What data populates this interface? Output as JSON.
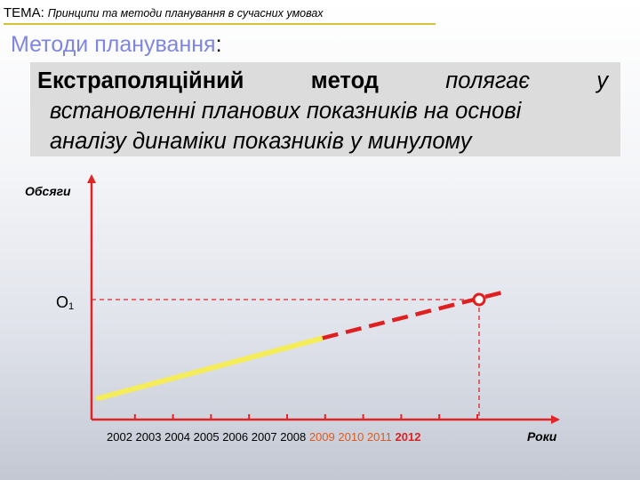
{
  "header": {
    "tema_label": "ТЕМА:",
    "topic": "Принципи та методи планування в сучасних умовах"
  },
  "subtitle": {
    "text": "Методи планування",
    "colon": ":"
  },
  "definition": {
    "word1": "Екстраполяційний",
    "word2": "метод",
    "word3": "полягає",
    "word4": "у",
    "line2": "встановленні планових показників на основі",
    "line3": "аналізу динаміки показників у минулому"
  },
  "chart_data": {
    "type": "line",
    "ylabel": "Обсяги",
    "xlabel": "Роки",
    "y_marker_label": "О",
    "y_marker_subscript": "1",
    "years": [
      "2002",
      "2003",
      "2004",
      "2005",
      "2006",
      "2007",
      "2008",
      "2009",
      "2010",
      "2011",
      "2012"
    ],
    "past_years": [
      "2002",
      "2003",
      "2004",
      "2005",
      "2006",
      "2007",
      "2008"
    ],
    "forecast_years": [
      "2009",
      "2010",
      "2011",
      "2012"
    ],
    "highlight_year": "2012",
    "series": [
      {
        "segment": "actual",
        "from": "2002",
        "to": "2008",
        "style": "solid",
        "color": "#f5ec5a"
      },
      {
        "segment": "forecast",
        "from": "2008",
        "to": "2012",
        "style": "dashed",
        "color": "#e02020"
      }
    ],
    "target_point": {
      "x": "2012",
      "y_label": "О1"
    }
  },
  "colors": {
    "axis": "#e02428",
    "guide": "#e02428",
    "actual_line": "#f5ec5a",
    "forecast_line": "#e02020",
    "forecast_years_text": "#e05a1e",
    "highlight_year_text": "#e02020",
    "subtitle": "#7f86df",
    "header_underline": "#d4c23a"
  }
}
